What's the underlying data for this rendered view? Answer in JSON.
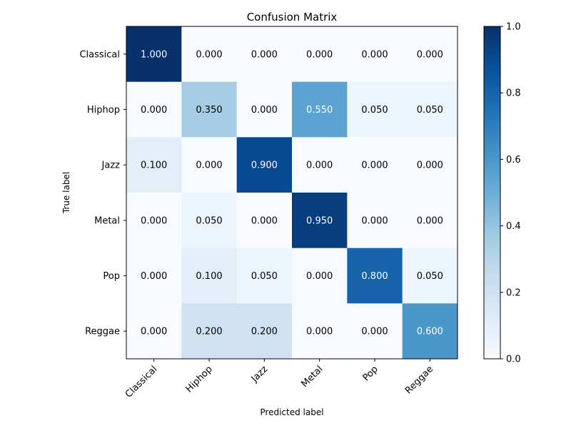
{
  "chart_data": {
    "type": "heatmap",
    "title": "Confusion Matrix",
    "xlabel": "Predicted label",
    "ylabel": "True label",
    "x_categories": [
      "Classical",
      "Hiphop",
      "Jazz",
      "Metal",
      "Pop",
      "Reggae"
    ],
    "y_categories": [
      "Classical",
      "Hiphop",
      "Jazz",
      "Metal",
      "Pop",
      "Reggae"
    ],
    "values": [
      [
        1.0,
        0.0,
        0.0,
        0.0,
        0.0,
        0.0
      ],
      [
        0.0,
        0.35,
        0.0,
        0.55,
        0.05,
        0.05
      ],
      [
        0.1,
        0.0,
        0.9,
        0.0,
        0.0,
        0.0
      ],
      [
        0.0,
        0.05,
        0.0,
        0.95,
        0.0,
        0.0
      ],
      [
        0.0,
        0.1,
        0.05,
        0.0,
        0.8,
        0.05
      ],
      [
        0.0,
        0.2,
        0.2,
        0.0,
        0.0,
        0.6
      ]
    ],
    "value_format": "0.000",
    "colormap": "Blues",
    "colorbar": {
      "range": [
        0,
        1
      ],
      "ticks": [
        0.0,
        0.2,
        0.4,
        0.6,
        0.8,
        1.0
      ],
      "tick_labels": [
        "0.0",
        "0.2",
        "0.4",
        "0.6",
        "0.8",
        "1.0"
      ]
    },
    "grid": false
  }
}
